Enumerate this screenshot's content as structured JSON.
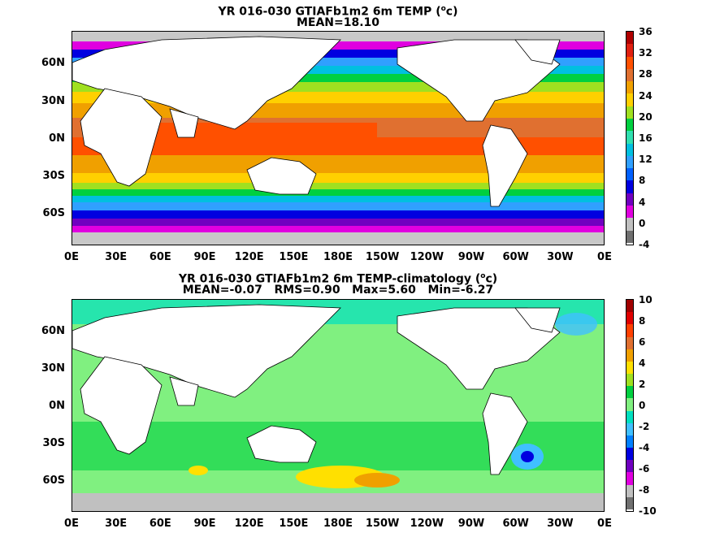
{
  "map1": {
    "title_line1": "YR 016-030 GTIAFb1m2 6m TEMP (",
    "title_sup": "o",
    "title_unit": "c)",
    "title_line2": "MEAN=18.10",
    "colorbar_ticks": [
      "36",
      "32",
      "28",
      "24",
      "20",
      "16",
      "12",
      "8",
      "4",
      "0",
      "-4"
    ],
    "colorbar_colors": [
      "#b00000",
      "#e02010",
      "#ff5000",
      "#e07030",
      "#f0a000",
      "#ffd000",
      "#a0e020",
      "#00d040",
      "#30e0b0",
      "#00c0e0",
      "#30a0ff",
      "#0060ff",
      "#0000e0",
      "#7000c0",
      "#e000e0",
      "#c0c0c0",
      "#707070"
    ],
    "mean": 18.1,
    "land_color": "#ffffff",
    "ice_color": "#c8c8c8"
  },
  "map2": {
    "title_line1": "YR 016-030 GTIAFb1m2 6m TEMP-climatology (",
    "title_sup": "o",
    "title_unit": "c)",
    "title_line2": "MEAN=-0.07   RMS=0.90   Max=5.60   Min=-6.27",
    "colorbar_ticks": [
      "10",
      "8",
      "6",
      "4",
      "2",
      "0",
      "-2",
      "-4",
      "-6",
      "-8",
      "-10"
    ],
    "colorbar_colors": [
      "#a00000",
      "#e00000",
      "#ff4000",
      "#e07030",
      "#f0a000",
      "#ffe000",
      "#a0e020",
      "#00d040",
      "#80f080",
      "#00e0c0",
      "#40c0ff",
      "#0080ff",
      "#0000e0",
      "#7000c0",
      "#e000e0",
      "#c0c0c0",
      "#707070"
    ],
    "mean": -0.07,
    "rms": 0.9,
    "max": 5.6,
    "min": -6.27
  },
  "axes": {
    "lat_labels": [
      "60N",
      "30N",
      "0N",
      "30S",
      "60S"
    ],
    "lon_labels": [
      "0E",
      "30E",
      "60E",
      "90E",
      "120E",
      "150E",
      "180E",
      "150W",
      "120W",
      "90W",
      "60W",
      "30W",
      "0E"
    ]
  }
}
